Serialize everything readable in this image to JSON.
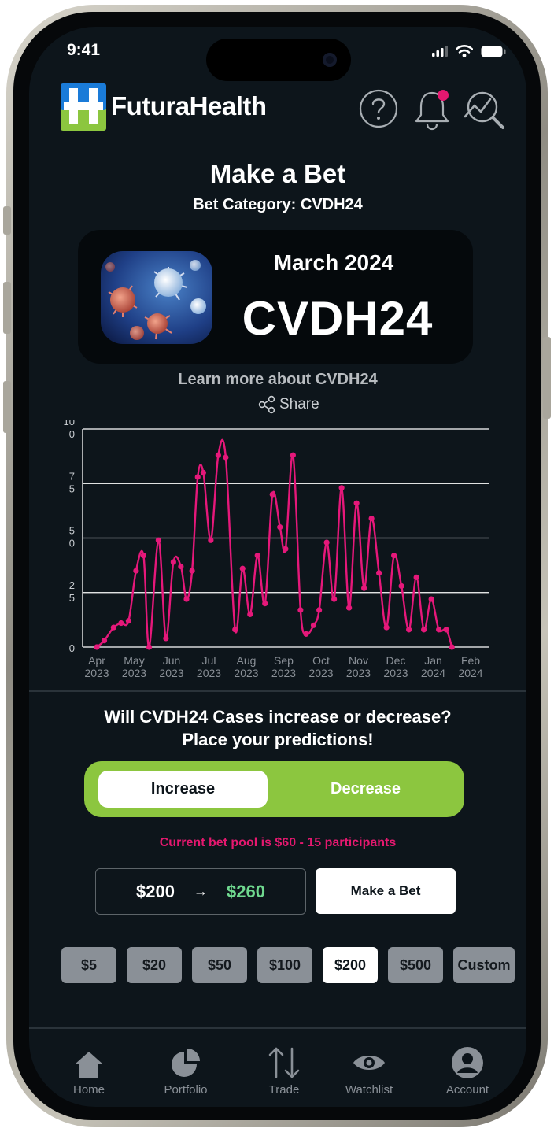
{
  "status": {
    "time": "9:41"
  },
  "brand": {
    "name": "FuturaHealth"
  },
  "header": {
    "help_icon": "help-circle-icon",
    "notif_icon": "bell-icon",
    "search_icon": "trend-search-icon"
  },
  "page": {
    "title": "Make a Bet",
    "subtitle": "Bet Category: CVDH24"
  },
  "card": {
    "month": "March 2024",
    "code": "CVDH24",
    "image_icon": "virus-image"
  },
  "learn_more": "Learn more about CVDH24",
  "share_label": "Share",
  "chart_data": {
    "type": "line",
    "y_ticks": [
      {
        "line1": "10",
        "line2": "0"
      },
      {
        "line1": "7",
        "line2": "5"
      },
      {
        "line1": "5",
        "line2": "0"
      },
      {
        "line1": "2",
        "line2": "5"
      },
      {
        "line1": "0",
        "line2": ""
      }
    ],
    "ylim": [
      0,
      100
    ],
    "grid": true,
    "x_ticks": [
      {
        "month": "Apr",
        "year": "2023"
      },
      {
        "month": "May",
        "year": "2023"
      },
      {
        "month": "Jun",
        "year": "2023"
      },
      {
        "month": "Jul",
        "year": "2023"
      },
      {
        "month": "Aug",
        "year": "2023"
      },
      {
        "month": "Sep",
        "year": "2023"
      },
      {
        "month": "Oct",
        "year": "2023"
      },
      {
        "month": "Nov",
        "year": "2023"
      },
      {
        "month": "Dec",
        "year": "2023"
      },
      {
        "month": "Jan",
        "year": "2024"
      },
      {
        "month": "Feb",
        "year": "2024"
      }
    ],
    "series": [
      {
        "color": "#e5187a",
        "points": [
          [
            0.0,
            0
          ],
          [
            0.2,
            3
          ],
          [
            0.45,
            9
          ],
          [
            0.65,
            11
          ],
          [
            0.85,
            12
          ],
          [
            1.05,
            35
          ],
          [
            1.25,
            42
          ],
          [
            1.4,
            0
          ],
          [
            1.65,
            49
          ],
          [
            1.85,
            4
          ],
          [
            2.05,
            39
          ],
          [
            2.25,
            37
          ],
          [
            2.4,
            22
          ],
          [
            2.55,
            35
          ],
          [
            2.7,
            78
          ],
          [
            2.85,
            80
          ],
          [
            3.05,
            49
          ],
          [
            3.25,
            88
          ],
          [
            3.45,
            87
          ],
          [
            3.7,
            8
          ],
          [
            3.9,
            36
          ],
          [
            4.1,
            15
          ],
          [
            4.3,
            42
          ],
          [
            4.5,
            20
          ],
          [
            4.7,
            70
          ],
          [
            4.9,
            55
          ],
          [
            5.05,
            45
          ],
          [
            5.25,
            88
          ],
          [
            5.45,
            17
          ],
          [
            5.6,
            6
          ],
          [
            5.8,
            10
          ],
          [
            5.95,
            17
          ],
          [
            6.15,
            48
          ],
          [
            6.35,
            22
          ],
          [
            6.55,
            73
          ],
          [
            6.75,
            18
          ],
          [
            6.95,
            66
          ],
          [
            7.15,
            27
          ],
          [
            7.35,
            59
          ],
          [
            7.55,
            34
          ],
          [
            7.75,
            9
          ],
          [
            7.95,
            42
          ],
          [
            8.15,
            28
          ],
          [
            8.35,
            8
          ],
          [
            8.55,
            32
          ],
          [
            8.75,
            8
          ],
          [
            8.95,
            22
          ],
          [
            9.15,
            8
          ],
          [
            9.35,
            8
          ],
          [
            9.5,
            0
          ]
        ]
      }
    ]
  },
  "question": {
    "line1": "Will CVDH24 Cases increase or decrease?",
    "line2": "Place your predictions!"
  },
  "toggle": {
    "increase": "Increase",
    "decrease": "Decrease"
  },
  "pool_text": "Current bet pool is $60 - 15 participants",
  "bet": {
    "amount": "$200",
    "arrow": "→",
    "payout": "$260",
    "button": "Make a Bet"
  },
  "chips": [
    "$5",
    "$20",
    "$50",
    "$100",
    "$200",
    "$500",
    "Custom"
  ],
  "selected_chip": "$200",
  "nav": [
    {
      "label": "Home",
      "icon": "home-icon"
    },
    {
      "label": "Portfolio",
      "icon": "pie-chart-icon"
    },
    {
      "label": "Trade",
      "icon": "arrows-up-down-icon"
    },
    {
      "label": "Watchlist",
      "icon": "eye-icon"
    },
    {
      "label": "Account",
      "icon": "user-circle-icon"
    }
  ]
}
